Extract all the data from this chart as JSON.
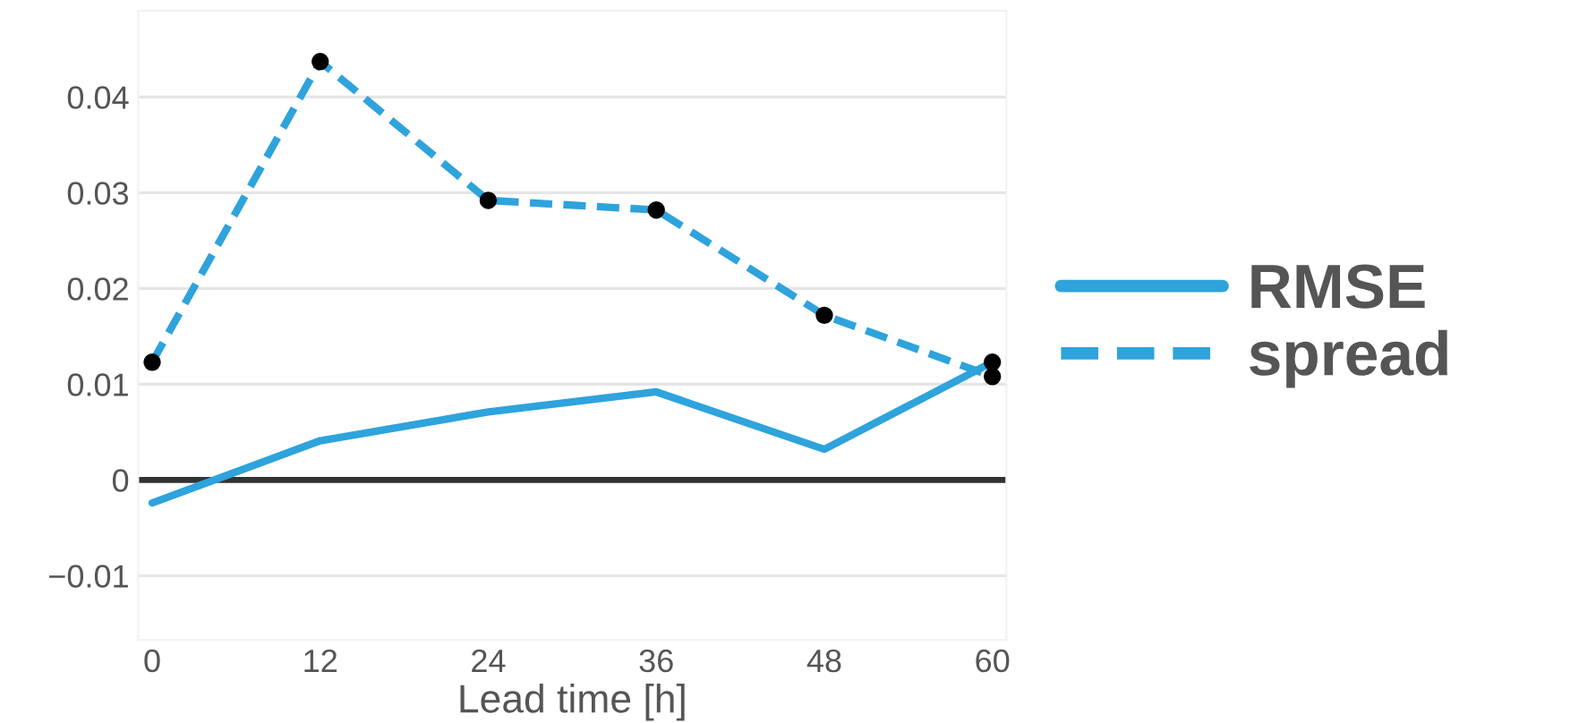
{
  "chart_data": {
    "type": "line",
    "xlabel": "Lead time [h]",
    "xlim": [
      -1,
      61
    ],
    "xticks": [
      0,
      12,
      24,
      36,
      48,
      60
    ],
    "ylim": [
      -0.0167,
      0.049
    ],
    "yticks": [
      {
        "value": -0.01,
        "label": "−0.01"
      },
      0,
      0.01,
      0.02,
      0.03,
      0.04
    ],
    "grid": "y",
    "legend": "right",
    "ref_lines": [
      {
        "axis": "y",
        "value": 0,
        "color": "#333333"
      }
    ],
    "series": [
      {
        "name": "RMSE",
        "color": "#2ea3dc",
        "line_style": "solid",
        "x": [
          0,
          12,
          24,
          36,
          48,
          60
        ],
        "values": [
          -0.0024,
          0.0041,
          0.0071,
          0.0092,
          0.0032,
          0.0123
        ]
      },
      {
        "name": "spread",
        "color": "#2ea3dc",
        "line_style": "dashed",
        "x": [
          0,
          12,
          24,
          36,
          48,
          60
        ],
        "values": [
          0.0123,
          0.0437,
          0.0292,
          0.0282,
          0.0172,
          0.0108
        ]
      },
      {
        "type": "scatter",
        "color": "#000000",
        "marker": "circle",
        "x": [
          0,
          12,
          24,
          36,
          48,
          60,
          60
        ],
        "values": [
          0.0123,
          0.0437,
          0.0292,
          0.0282,
          0.0172,
          0.0123,
          0.0108
        ]
      }
    ]
  }
}
